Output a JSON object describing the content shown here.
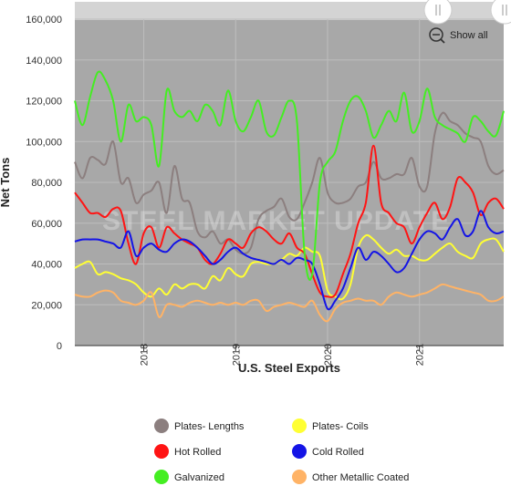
{
  "toolbar": {
    "show_all_label": "Show all",
    "zoom_icon": "zoom-out-icon",
    "handle_icon": "scroll-handle-icon"
  },
  "chart_data": {
    "type": "line",
    "title": "",
    "xlabel": "U.S. Steel Exports",
    "ylabel": "Net Tons",
    "watermark": "STEEL MARKET UPDATE",
    "x_range": [
      "2017-04",
      "2021-12"
    ],
    "x_ticks": [
      {
        "label": "2018",
        "date": "2018-01"
      },
      {
        "label": "2019",
        "date": "2019-01"
      },
      {
        "label": "2020",
        "date": "2020-01"
      },
      {
        "label": "2021",
        "date": "2021-01"
      }
    ],
    "y_ticks": [
      "0",
      "20,000",
      "40,000",
      "60,000",
      "80,000",
      "100,000",
      "120,000",
      "140,000",
      "160,000"
    ],
    "ylim": [
      0,
      160000
    ],
    "grid": true,
    "legend_position": "bottom",
    "x": [
      "2017-04",
      "2017-05",
      "2017-06",
      "2017-07",
      "2017-08",
      "2017-09",
      "2017-10",
      "2017-11",
      "2017-12",
      "2018-01",
      "2018-02",
      "2018-03",
      "2018-04",
      "2018-05",
      "2018-06",
      "2018-07",
      "2018-08",
      "2018-09",
      "2018-10",
      "2018-11",
      "2018-12",
      "2019-01",
      "2019-02",
      "2019-03",
      "2019-04",
      "2019-05",
      "2019-06",
      "2019-07",
      "2019-08",
      "2019-09",
      "2019-10",
      "2019-11",
      "2019-12",
      "2020-01",
      "2020-02",
      "2020-03",
      "2020-04",
      "2020-05",
      "2020-06",
      "2020-07",
      "2020-08",
      "2020-09",
      "2020-10",
      "2020-11",
      "2020-12",
      "2021-01",
      "2021-02",
      "2021-03",
      "2021-04",
      "2021-05",
      "2021-06",
      "2021-07",
      "2021-08",
      "2021-09",
      "2021-10",
      "2021-11",
      "2021-12"
    ],
    "series": [
      {
        "name": "Plates- Lengths",
        "color": "#8c7f7f",
        "values": [
          90000,
          82000,
          92000,
          91000,
          89000,
          100000,
          80000,
          82000,
          70000,
          74000,
          76000,
          80000,
          65000,
          88000,
          72000,
          70000,
          56000,
          53000,
          56000,
          50000,
          52000,
          47000,
          45000,
          48000,
          62000,
          66000,
          68000,
          72000,
          63000,
          62000,
          70000,
          80000,
          92000,
          75000,
          70000,
          70000,
          72000,
          78000,
          80000,
          90000,
          82000,
          82000,
          84000,
          84000,
          92000,
          78000,
          78000,
          104000,
          114000,
          110000,
          108000,
          104000,
          102000,
          100000,
          88000,
          84000,
          86000
        ]
      },
      {
        "name": "Plates- Coils",
        "color": "#ffff33",
        "values": [
          38000,
          40000,
          41000,
          35000,
          36000,
          35000,
          33000,
          32000,
          30000,
          26000,
          24000,
          28000,
          25000,
          30000,
          28000,
          30000,
          30000,
          28000,
          34000,
          32000,
          38000,
          35000,
          34000,
          40000,
          41000,
          40000,
          40000,
          42000,
          45000,
          44000,
          48000,
          46000,
          44000,
          27000,
          24000,
          23000,
          30000,
          48000,
          54000,
          52000,
          48000,
          45000,
          47000,
          44000,
          44000,
          42000,
          42000,
          45000,
          48000,
          50000,
          46000,
          44000,
          43000,
          50000,
          52000,
          52000,
          46000
        ]
      },
      {
        "name": "Hot Rolled",
        "color": "#ff1414",
        "values": [
          75000,
          70000,
          65000,
          65000,
          63000,
          67000,
          66000,
          50000,
          40000,
          55000,
          58000,
          48000,
          58000,
          55000,
          52000,
          50000,
          48000,
          42000,
          40000,
          45000,
          52000,
          50000,
          48000,
          55000,
          58000,
          56000,
          52000,
          50000,
          55000,
          48000,
          45000,
          35000,
          26000,
          24000,
          25000,
          35000,
          45000,
          60000,
          70000,
          98000,
          70000,
          65000,
          60000,
          58000,
          50000,
          58000,
          65000,
          70000,
          62000,
          68000,
          82000,
          80000,
          75000,
          64000,
          70000,
          72000,
          67000
        ]
      },
      {
        "name": "Cold Rolled",
        "color": "#1414e6",
        "values": [
          51000,
          52000,
          52000,
          52000,
          51000,
          50000,
          48000,
          56000,
          44000,
          48000,
          50000,
          47000,
          46000,
          50000,
          52000,
          51000,
          48000,
          44000,
          40000,
          42000,
          46000,
          48000,
          45000,
          43000,
          42000,
          41000,
          40000,
          42000,
          40000,
          43000,
          42000,
          40000,
          30000,
          18000,
          22000,
          28000,
          38000,
          48000,
          42000,
          46000,
          44000,
          40000,
          36000,
          38000,
          45000,
          52000,
          56000,
          55000,
          52000,
          58000,
          62000,
          54000,
          56000,
          66000,
          58000,
          55000,
          56000
        ]
      },
      {
        "name": "Galvanized",
        "color": "#44ee22",
        "values": [
          120000,
          108000,
          122000,
          134000,
          130000,
          120000,
          100000,
          118000,
          110000,
          112000,
          108000,
          88000,
          125000,
          115000,
          112000,
          115000,
          110000,
          118000,
          115000,
          108000,
          125000,
          110000,
          105000,
          112000,
          120000,
          105000,
          103000,
          112000,
          120000,
          110000,
          45000,
          35000,
          80000,
          90000,
          95000,
          110000,
          120000,
          122000,
          115000,
          102000,
          108000,
          115000,
          110000,
          124000,
          105000,
          110000,
          126000,
          112000,
          108000,
          106000,
          104000,
          100000,
          112000,
          110000,
          105000,
          103000,
          115000
        ]
      },
      {
        "name": "Other Metallic Coated",
        "color": "#ffb366",
        "values": [
          25000,
          24000,
          24000,
          26000,
          27000,
          26000,
          22000,
          21000,
          20000,
          22000,
          26000,
          14000,
          20000,
          20000,
          19000,
          21000,
          22000,
          21000,
          20000,
          21000,
          20000,
          21000,
          20000,
          22000,
          22000,
          17000,
          19000,
          20000,
          21000,
          20000,
          19000,
          22000,
          15000,
          12000,
          18000,
          21000,
          22000,
          23000,
          22000,
          22000,
          20000,
          24000,
          26000,
          25000,
          24000,
          25000,
          26000,
          28000,
          30000,
          29000,
          28000,
          27000,
          26000,
          25000,
          22000,
          22000,
          24000
        ]
      }
    ]
  }
}
